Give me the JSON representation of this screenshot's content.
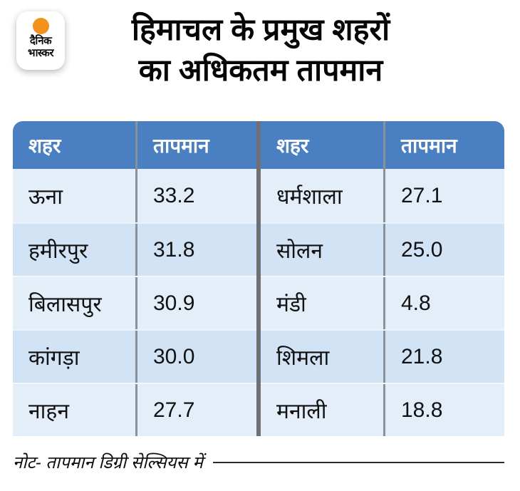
{
  "brand": {
    "name": "दैनिक भास्कर",
    "logo_line1": "दैनिक",
    "logo_line2": "भास्कर"
  },
  "title": {
    "line1": "हिमाचल के प्रमुख शहरों",
    "line2": "का अधिकतम तापमान"
  },
  "table": {
    "city_header": "शहर",
    "temp_header": "तापमान",
    "left_rows": [
      {
        "city": "ऊना",
        "temp": "33.2"
      },
      {
        "city": "हमीरपुर",
        "temp": "31.8"
      },
      {
        "city": "बिलासपुर",
        "temp": "30.9"
      },
      {
        "city": "कांगड़ा",
        "temp": "30.0"
      },
      {
        "city": "नाहन",
        "temp": "27.7"
      }
    ],
    "right_rows": [
      {
        "city": "धर्मशाला",
        "temp": "27.1"
      },
      {
        "city": "सोलन",
        "temp": "25.0"
      },
      {
        "city": "मंडी",
        "temp": "4.8"
      },
      {
        "city": "शिमला",
        "temp": "21.8"
      },
      {
        "city": "मनाली",
        "temp": "18.8"
      }
    ]
  },
  "note": "नोट- तापमान डिग्री सेल्सियस में",
  "colors": {
    "header_blue": "#4a80c2",
    "row_light": "#e4eef9",
    "row_dark": "#d2e3f5",
    "divider_dark": "#6d7176",
    "column_separator": "#8b9199",
    "logo_orange": "#f2921d",
    "text": "#111111"
  },
  "chart_data": {
    "type": "table",
    "title": "हिमाचल के प्रमुख शहरों का अधिकतम तापमान",
    "columns": [
      "शहर",
      "तापमान"
    ],
    "rows": [
      [
        "ऊना",
        33.2
      ],
      [
        "हमीरपुर",
        31.8
      ],
      [
        "बिलासपुर",
        30.9
      ],
      [
        "कांगड़ा",
        30.0
      ],
      [
        "नाहन",
        27.7
      ],
      [
        "धर्मशाला",
        27.1
      ],
      [
        "सोलन",
        25.0
      ],
      [
        "मंडी",
        4.8
      ],
      [
        "शिमला",
        21.8
      ],
      [
        "मनाली",
        18.8
      ]
    ],
    "unit": "डिग्री सेल्सियस",
    "note": "नोट- तापमान डिग्री सेल्सियस में"
  }
}
